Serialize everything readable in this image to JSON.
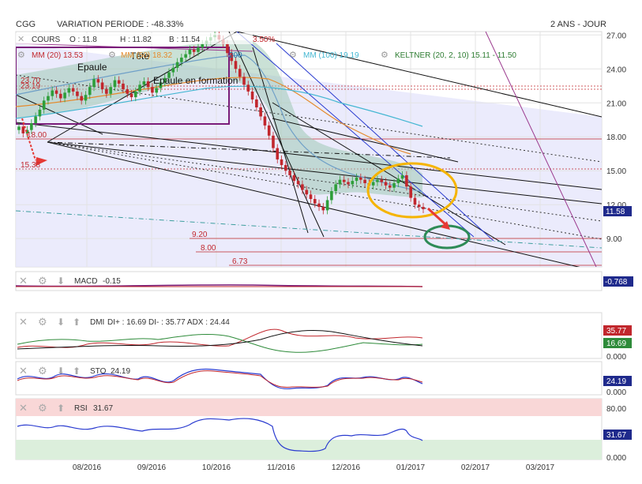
{
  "header": {
    "ticker": "CGG",
    "variation": "VARIATION PERIODE : -48.33%",
    "period": "2 ANS - JOUR"
  },
  "legend": {
    "cours": "COURS",
    "o": "O : 11.8",
    "h": "H : 11.82",
    "b": "B : 11.54",
    "c": "3.50%",
    "mm20": "MM (20) 13.53",
    "mm50": "MM (50) 18.32",
    "mm100": "MM (100) 19.19",
    "keltner": "KELTNER (20, 2, 10) 15.11 - 11.50",
    "partial": "200"
  },
  "annotations": {
    "tete": "Tête",
    "epaule": "Epaule",
    "epaule_formation": "Epaule en formation",
    "l1": "23.70",
    "l2": "23.19",
    "l3": "18.00",
    "l4": "15.38",
    "s1": "9.20",
    "s2": "8.00",
    "s3": "6.73"
  },
  "colors": {
    "up": "#2e9e3a",
    "down": "#c1272d",
    "panel_bg": "#e8e8fb",
    "keltner_fill": "#9fc8b4",
    "mm20": "#6fa0c8",
    "mm50": "#e58a2c",
    "mm100": "#44b7d2",
    "purple": "#7a1d7a",
    "accent_label": "#1f2a8c"
  },
  "chart_data": {
    "type": "candlestick",
    "x_ticks": [
      "08/2016",
      "09/2016",
      "10/2016",
      "11/2016",
      "12/2016",
      "01/2017",
      "02/2017",
      "03/2017"
    ],
    "price_axis": {
      "ticks": [
        "27.00",
        "24.00",
        "21.00",
        "18.00",
        "15.00",
        "12.00",
        "9.00"
      ],
      "last": "11.58",
      "ylim": [
        6.5,
        27.3
      ]
    },
    "candles_close": [
      18.9,
      18.3,
      18.6,
      19.2,
      19.8,
      20.4,
      21.2,
      21.6,
      22.1,
      21.8,
      21.4,
      21.9,
      22.3,
      22.0,
      21.6,
      21.2,
      21.7,
      22.4,
      23.1,
      22.8,
      22.2,
      21.8,
      22.4,
      23.0,
      22.7,
      22.2,
      21.8,
      21.5,
      22.0,
      22.6,
      22.9,
      22.4,
      21.9,
      22.3,
      22.8,
      23.2,
      23.7,
      24.1,
      24.6,
      25.0,
      25.3,
      25.7,
      25.5,
      25.9,
      26.2,
      26.5,
      26.8,
      27.0,
      26.6,
      26.2,
      25.4,
      24.7,
      24.0,
      23.3,
      22.6,
      22.0,
      21.3,
      20.6,
      19.8,
      19.0,
      18.1,
      17.0,
      16.0,
      15.5,
      15.0,
      14.6,
      14.1,
      13.8,
      13.3,
      12.9,
      12.5,
      12.1,
      11.8,
      11.5,
      12.4,
      13.2,
      13.8,
      14.2,
      14.0,
      13.8,
      14.1,
      14.4,
      14.2,
      13.9,
      13.7,
      14.0,
      14.2,
      14.0,
      13.7,
      13.5,
      13.9,
      14.3,
      14.6,
      13.6,
      12.6,
      12.0,
      11.8,
      11.6
    ],
    "macd": {
      "label": "MACD",
      "value": "-0.15",
      "axis": "-0.768"
    },
    "dmi": {
      "label": "DMI",
      "values": "DI+ : 16.69 DI- : 35.77 ADX : 24.44",
      "di_minus": "35.77",
      "di_plus": "16.69",
      "axis_zero": "0.000"
    },
    "sto": {
      "label": "STO",
      "value": "24.19",
      "axis": "24.19",
      "axis_zero": "0.000"
    },
    "rsi": {
      "label": "RSI",
      "value": "31.67",
      "axis_top": "80.00",
      "axis": "31.67",
      "axis_zero": "0.000"
    }
  }
}
